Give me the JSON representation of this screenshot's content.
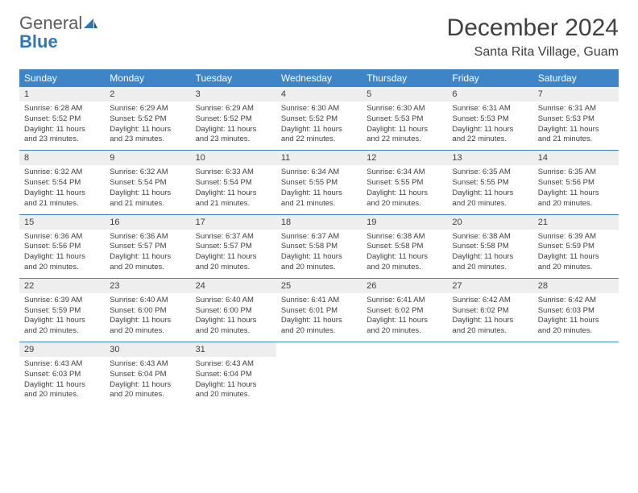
{
  "logo": {
    "word1": "General",
    "word2": "Blue"
  },
  "title": "December 2024",
  "location": "Santa Rita Village, Guam",
  "colors": {
    "header_bg": "#3d85c6",
    "daynum_bg": "#eeeeee",
    "text": "#404040",
    "logo_gray": "#5b5b5b",
    "logo_blue": "#2e77bb",
    "page_bg": "#ffffff"
  },
  "day_headers": [
    "Sunday",
    "Monday",
    "Tuesday",
    "Wednesday",
    "Thursday",
    "Friday",
    "Saturday"
  ],
  "weeks": [
    [
      {
        "n": "1",
        "sr": "6:28 AM",
        "ss": "5:52 PM",
        "dl": "11 hours and 23 minutes."
      },
      {
        "n": "2",
        "sr": "6:29 AM",
        "ss": "5:52 PM",
        "dl": "11 hours and 23 minutes."
      },
      {
        "n": "3",
        "sr": "6:29 AM",
        "ss": "5:52 PM",
        "dl": "11 hours and 23 minutes."
      },
      {
        "n": "4",
        "sr": "6:30 AM",
        "ss": "5:52 PM",
        "dl": "11 hours and 22 minutes."
      },
      {
        "n": "5",
        "sr": "6:30 AM",
        "ss": "5:53 PM",
        "dl": "11 hours and 22 minutes."
      },
      {
        "n": "6",
        "sr": "6:31 AM",
        "ss": "5:53 PM",
        "dl": "11 hours and 22 minutes."
      },
      {
        "n": "7",
        "sr": "6:31 AM",
        "ss": "5:53 PM",
        "dl": "11 hours and 21 minutes."
      }
    ],
    [
      {
        "n": "8",
        "sr": "6:32 AM",
        "ss": "5:54 PM",
        "dl": "11 hours and 21 minutes."
      },
      {
        "n": "9",
        "sr": "6:32 AM",
        "ss": "5:54 PM",
        "dl": "11 hours and 21 minutes."
      },
      {
        "n": "10",
        "sr": "6:33 AM",
        "ss": "5:54 PM",
        "dl": "11 hours and 21 minutes."
      },
      {
        "n": "11",
        "sr": "6:34 AM",
        "ss": "5:55 PM",
        "dl": "11 hours and 21 minutes."
      },
      {
        "n": "12",
        "sr": "6:34 AM",
        "ss": "5:55 PM",
        "dl": "11 hours and 20 minutes."
      },
      {
        "n": "13",
        "sr": "6:35 AM",
        "ss": "5:55 PM",
        "dl": "11 hours and 20 minutes."
      },
      {
        "n": "14",
        "sr": "6:35 AM",
        "ss": "5:56 PM",
        "dl": "11 hours and 20 minutes."
      }
    ],
    [
      {
        "n": "15",
        "sr": "6:36 AM",
        "ss": "5:56 PM",
        "dl": "11 hours and 20 minutes."
      },
      {
        "n": "16",
        "sr": "6:36 AM",
        "ss": "5:57 PM",
        "dl": "11 hours and 20 minutes."
      },
      {
        "n": "17",
        "sr": "6:37 AM",
        "ss": "5:57 PM",
        "dl": "11 hours and 20 minutes."
      },
      {
        "n": "18",
        "sr": "6:37 AM",
        "ss": "5:58 PM",
        "dl": "11 hours and 20 minutes."
      },
      {
        "n": "19",
        "sr": "6:38 AM",
        "ss": "5:58 PM",
        "dl": "11 hours and 20 minutes."
      },
      {
        "n": "20",
        "sr": "6:38 AM",
        "ss": "5:58 PM",
        "dl": "11 hours and 20 minutes."
      },
      {
        "n": "21",
        "sr": "6:39 AM",
        "ss": "5:59 PM",
        "dl": "11 hours and 20 minutes."
      }
    ],
    [
      {
        "n": "22",
        "sr": "6:39 AM",
        "ss": "5:59 PM",
        "dl": "11 hours and 20 minutes."
      },
      {
        "n": "23",
        "sr": "6:40 AM",
        "ss": "6:00 PM",
        "dl": "11 hours and 20 minutes."
      },
      {
        "n": "24",
        "sr": "6:40 AM",
        "ss": "6:00 PM",
        "dl": "11 hours and 20 minutes."
      },
      {
        "n": "25",
        "sr": "6:41 AM",
        "ss": "6:01 PM",
        "dl": "11 hours and 20 minutes."
      },
      {
        "n": "26",
        "sr": "6:41 AM",
        "ss": "6:02 PM",
        "dl": "11 hours and 20 minutes."
      },
      {
        "n": "27",
        "sr": "6:42 AM",
        "ss": "6:02 PM",
        "dl": "11 hours and 20 minutes."
      },
      {
        "n": "28",
        "sr": "6:42 AM",
        "ss": "6:03 PM",
        "dl": "11 hours and 20 minutes."
      }
    ],
    [
      {
        "n": "29",
        "sr": "6:43 AM",
        "ss": "6:03 PM",
        "dl": "11 hours and 20 minutes."
      },
      {
        "n": "30",
        "sr": "6:43 AM",
        "ss": "6:04 PM",
        "dl": "11 hours and 20 minutes."
      },
      {
        "n": "31",
        "sr": "6:43 AM",
        "ss": "6:04 PM",
        "dl": "11 hours and 20 minutes."
      },
      null,
      null,
      null,
      null
    ]
  ],
  "labels": {
    "sunrise": "Sunrise:",
    "sunset": "Sunset:",
    "daylight": "Daylight:"
  }
}
